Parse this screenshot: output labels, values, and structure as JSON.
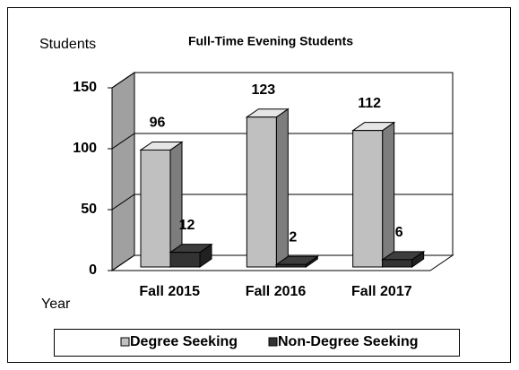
{
  "chart_data": {
    "type": "bar3d",
    "title": "Full-Time Evening Students",
    "y_label": "Students",
    "x_label": "Year",
    "categories": [
      "Fall 2015",
      "Fall 2016",
      "Fall 2017"
    ],
    "series": [
      {
        "name": "Degree Seeking",
        "color": "#c0c0c0",
        "values": [
          96,
          123,
          112
        ]
      },
      {
        "name": "Non-Degree Seeking",
        "color": "#333333",
        "values": [
          12,
          2,
          6
        ]
      }
    ],
    "ylim": [
      0,
      150
    ],
    "yticks": [
      0,
      50,
      100,
      150
    ],
    "grid": true,
    "legend": "bottom"
  }
}
